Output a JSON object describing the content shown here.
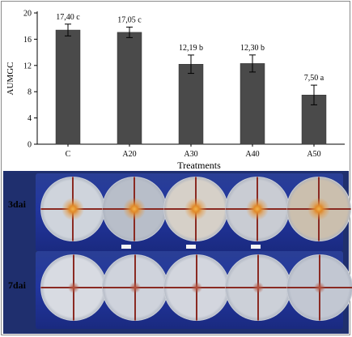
{
  "chart_data": {
    "type": "bar",
    "categories": [
      "C",
      "A20",
      "A30",
      "A40",
      "A50"
    ],
    "values": [
      17.4,
      17.05,
      12.19,
      12.3,
      7.5
    ],
    "errors": [
      0.9,
      0.8,
      1.4,
      1.3,
      1.5
    ],
    "data_labels": [
      "17,40 c",
      "17,05 c",
      "12,19 b",
      "12,30 b",
      "7,50 a"
    ],
    "xlabel": "Treatments",
    "ylabel": "AUMGC",
    "ylim": [
      0,
      20
    ],
    "yticks": [
      0,
      4,
      8,
      12,
      16,
      20
    ],
    "grid": false,
    "bar_color": "#4a4a4a"
  },
  "photos": {
    "rows": [
      {
        "label": "3dai",
        "dishes": 5
      },
      {
        "label": "7dai",
        "dishes": 5
      }
    ],
    "background_color": "#1f2f6e"
  }
}
